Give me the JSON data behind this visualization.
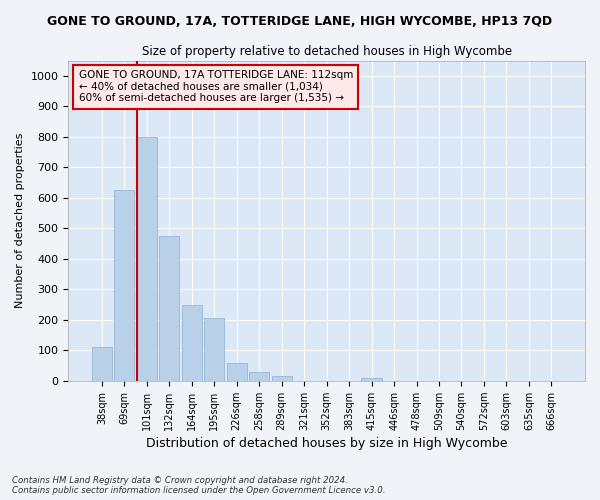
{
  "title": "GONE TO GROUND, 17A, TOTTERIDGE LANE, HIGH WYCOMBE, HP13 7QD",
  "subtitle": "Size of property relative to detached houses in High Wycombe",
  "xlabel": "Distribution of detached houses by size in High Wycombe",
  "ylabel": "Number of detached properties",
  "categories": [
    "38sqm",
    "69sqm",
    "101sqm",
    "132sqm",
    "164sqm",
    "195sqm",
    "226sqm",
    "258sqm",
    "289sqm",
    "321sqm",
    "352sqm",
    "383sqm",
    "415sqm",
    "446sqm",
    "478sqm",
    "509sqm",
    "540sqm",
    "572sqm",
    "603sqm",
    "635sqm",
    "666sqm"
  ],
  "values": [
    110,
    625,
    800,
    475,
    250,
    205,
    60,
    30,
    15,
    0,
    0,
    0,
    10,
    0,
    0,
    0,
    0,
    0,
    0,
    0,
    0
  ],
  "bar_color": "#b8d0e8",
  "bar_edge_color": "#8ab0d0",
  "highlight_line_index": 2,
  "highlight_color": "#cc0000",
  "annotation_text": "GONE TO GROUND, 17A TOTTERIDGE LANE: 112sqm\n← 40% of detached houses are smaller (1,034)\n60% of semi-detached houses are larger (1,535) →",
  "annotation_box_facecolor": "#ffe8e8",
  "annotation_border_color": "#cc0000",
  "ylim": [
    0,
    1050
  ],
  "yticks": [
    0,
    100,
    200,
    300,
    400,
    500,
    600,
    700,
    800,
    900,
    1000
  ],
  "plot_bg_color": "#dce8f5",
  "grid_color": "#ffffff",
  "fig_bg_color": "#f0f4f8",
  "footer1": "Contains HM Land Registry data © Crown copyright and database right 2024.",
  "footer2": "Contains public sector information licensed under the Open Government Licence v3.0."
}
